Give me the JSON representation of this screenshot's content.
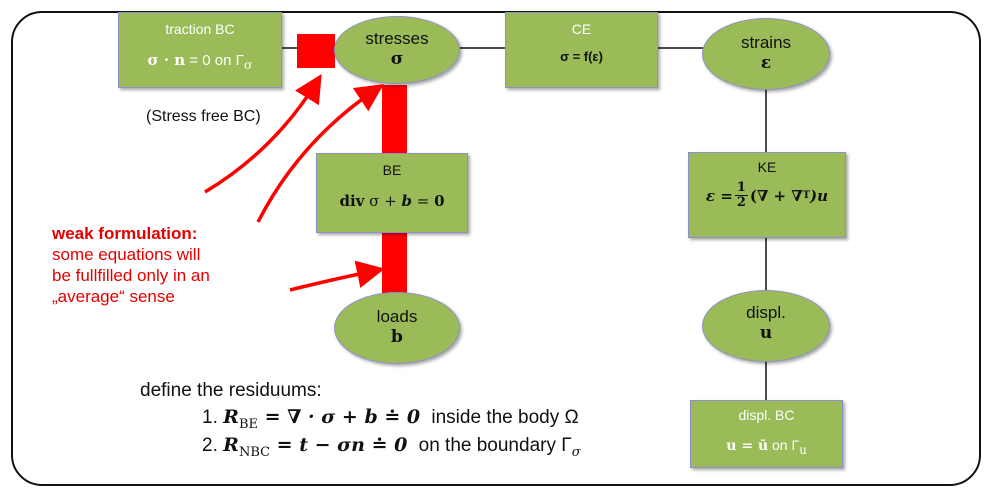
{
  "nodes": {
    "traction_bc": {
      "title": "traction BC",
      "eq_bold": "σ · n",
      "eq_rest": " = 0 on Γ",
      "eq_sub": "σ"
    },
    "stresses": {
      "title": "stresses",
      "symbol": "σ"
    },
    "ce": {
      "title": "CE",
      "eq": "σ = f(ε)"
    },
    "strains": {
      "title": "strains",
      "symbol": "ε"
    },
    "be": {
      "title": "BE",
      "eq_div": "div",
      "eq_rest": " σ + ",
      "eq_b": "b",
      "eq_eq": " = ",
      "eq_zero": "0"
    },
    "ke": {
      "title": "KE",
      "eq_lhs": "ε =",
      "eq_num": "1",
      "eq_den": "2",
      "eq_rest": "(∇ + ∇",
      "eq_sup": "T",
      "eq_end": ")u"
    },
    "loads": {
      "title": "loads",
      "symbol": "b"
    },
    "displ": {
      "title": "displ.",
      "symbol": "u"
    },
    "displ_bc": {
      "title": "displ. BC",
      "eq_bold": "u = ū",
      "eq_rest": " on Γ",
      "eq_sub": "u"
    }
  },
  "annotations": {
    "stress_free": "(Stress free BC)",
    "weak_title": "weak formulation:",
    "weak_line1": "some equations will",
    "weak_line2": "be fullfilled only in an",
    "weak_line3": "„average“ sense"
  },
  "residuals": {
    "heading": "define the residuums:",
    "item1": {
      "num": "1.",
      "lhs": "R",
      "sub": "BE",
      "expr": " = ∇ · σ + b ≐ 0",
      "tail": "inside the body Ω"
    },
    "item2": {
      "num": "2.",
      "lhs": "R",
      "sub": "NBC",
      "expr": " = t − σn ≐ 0",
      "tail": "on the boundary Γ",
      "tail_sub": "σ"
    }
  },
  "colors": {
    "node_fill": "#9bbb59",
    "node_border": "#8f8fc8",
    "highlight": "#ff0000",
    "annotation_text": "#e50000"
  }
}
